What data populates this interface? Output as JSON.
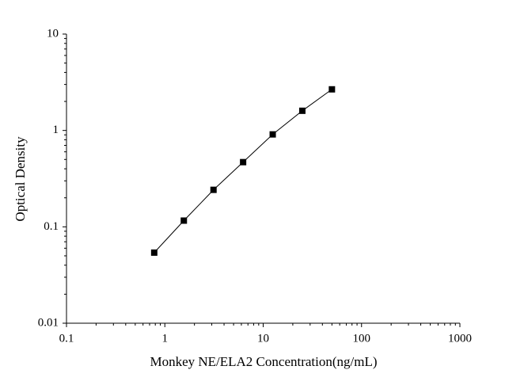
{
  "chart_data": {
    "type": "scatter",
    "x_label": "Monkey NE/ELA2 Concentration(ng/mL)",
    "y_label": "Optical Density",
    "x": [
      0.78,
      1.56,
      3.125,
      6.25,
      12.5,
      25,
      50
    ],
    "values": [
      0.054,
      0.116,
      0.242,
      0.469,
      0.91,
      1.6,
      2.67
    ],
    "color": "#000000",
    "xlim": [
      0.1,
      1000
    ],
    "ylim": [
      0.01,
      10
    ],
    "xticks": [
      0.1,
      1,
      10,
      100,
      1000
    ],
    "yticks": [
      0.01,
      0.1,
      1,
      10
    ],
    "xscale": "log",
    "yscale": "log"
  }
}
